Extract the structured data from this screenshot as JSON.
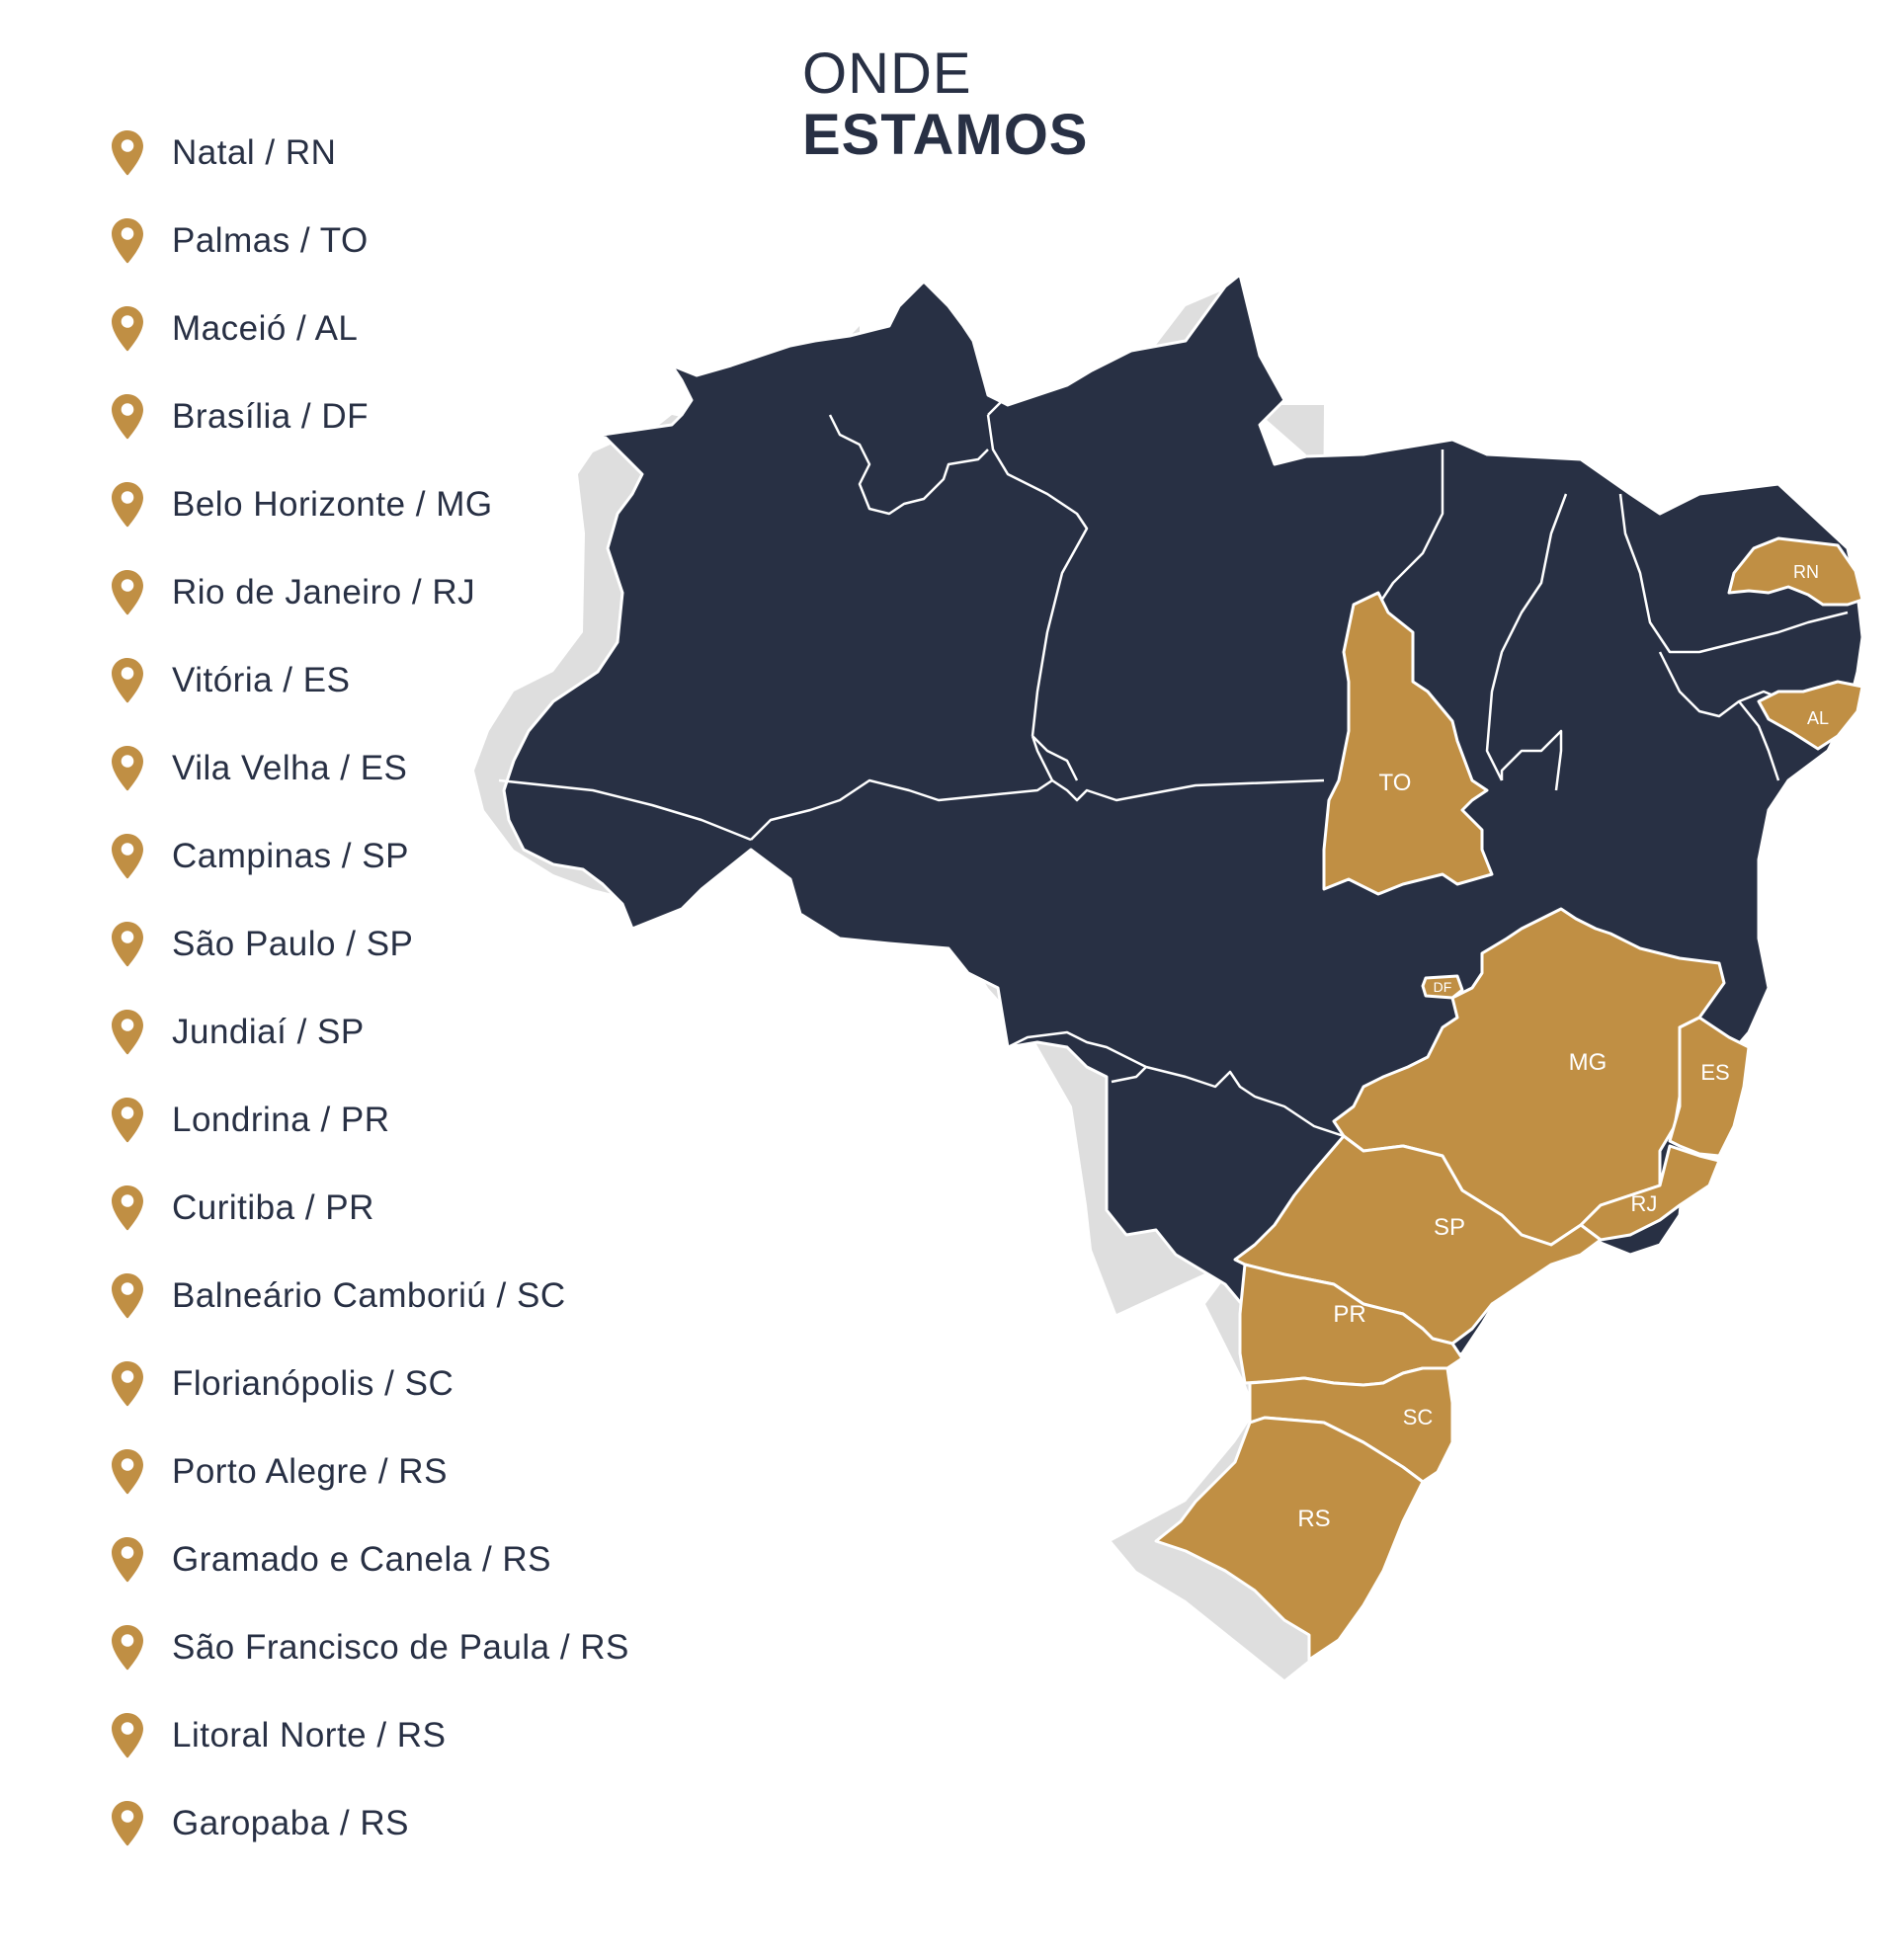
{
  "title": {
    "line1": "ONDE",
    "line2": "ESTAMOS"
  },
  "locations": [
    "Natal / RN",
    "Palmas / TO",
    "Maceió / AL",
    "Brasília / DF",
    "Belo Horizonte / MG",
    "Rio de Janeiro / RJ",
    "Vitória / ES",
    "Vila Velha / ES",
    "Campinas / SP",
    "São Paulo / SP",
    "Jundiaí / SP",
    "Londrina / PR",
    "Curitiba / PR",
    "Balneário Camboriú / SC",
    "Florianópolis / SC",
    "Porto Alegre / RS",
    "Gramado e Canela / RS",
    "São Francisco de Paula / RS",
    "Litoral Norte / RS",
    "Garopaba / RS"
  ],
  "map": {
    "state_labels": {
      "rn": "RN",
      "al": "AL",
      "to": "TO",
      "df": "DF",
      "mg": "MG",
      "es": "ES",
      "rj": "RJ",
      "sp": "SP",
      "pr": "PR",
      "sc": "SC",
      "rs": "RS"
    },
    "highlighted_states": [
      "RN",
      "AL",
      "TO",
      "DF",
      "MG",
      "ES",
      "RJ",
      "SP",
      "PR",
      "SC",
      "RS"
    ]
  },
  "colors": {
    "dark": "#283044",
    "gold": "#C08F44",
    "shadow": "#DEDEDE",
    "border": "#FFFFFF"
  },
  "icons": {
    "location": "map-pin-icon"
  }
}
